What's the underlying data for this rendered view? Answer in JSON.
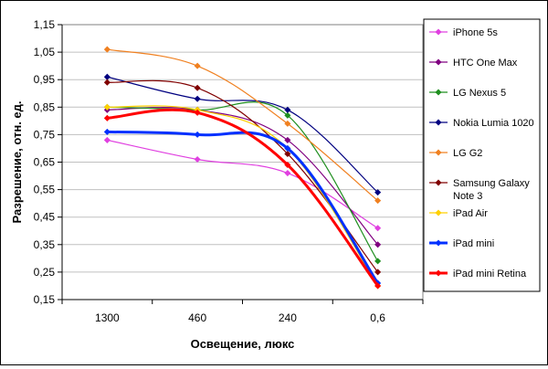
{
  "chart_data": {
    "type": "line",
    "title": "",
    "xlabel": "Освещение, люкс",
    "ylabel": "Разрешение, отн. ед.",
    "categories": [
      "1300",
      "460",
      "240",
      "0,6"
    ],
    "ylim": [
      0.15,
      1.15
    ],
    "yticks": [
      "0,15",
      "0,25",
      "0,35",
      "0,45",
      "0,55",
      "0,65",
      "0,75",
      "0,85",
      "0,95",
      "1,05",
      "1,15"
    ],
    "grid": true,
    "legend_position": "right",
    "series": [
      {
        "name": "iPhone 5s",
        "color": "#e040e0",
        "values": [
          0.73,
          0.66,
          0.61,
          0.41
        ]
      },
      {
        "name": "HTC One Max",
        "color": "#800080",
        "values": [
          0.84,
          0.84,
          0.73,
          0.35
        ]
      },
      {
        "name": "LG Nexus 5",
        "color": "#1f8f1f",
        "values": [
          0.85,
          0.84,
          0.82,
          0.29
        ]
      },
      {
        "name": "Nokia Lumia 1020",
        "color": "#000080",
        "values": [
          0.96,
          0.88,
          0.84,
          0.54
        ]
      },
      {
        "name": "LG G2",
        "color": "#f08020",
        "values": [
          1.06,
          1.0,
          0.79,
          0.51
        ]
      },
      {
        "name": "Samsung Galaxy Note 3",
        "color": "#800000",
        "values": [
          0.94,
          0.92,
          0.68,
          0.25
        ]
      },
      {
        "name": "iPad Air",
        "color": "#ffd000",
        "values": [
          0.85,
          0.84,
          0.7,
          0.2
        ]
      },
      {
        "name": "iPad mini",
        "color": "#0030ff",
        "values": [
          0.76,
          0.75,
          0.7,
          0.21
        ]
      },
      {
        "name": "iPad mini Retina",
        "color": "#ff0000",
        "values": [
          0.81,
          0.83,
          0.64,
          0.2
        ]
      }
    ]
  }
}
